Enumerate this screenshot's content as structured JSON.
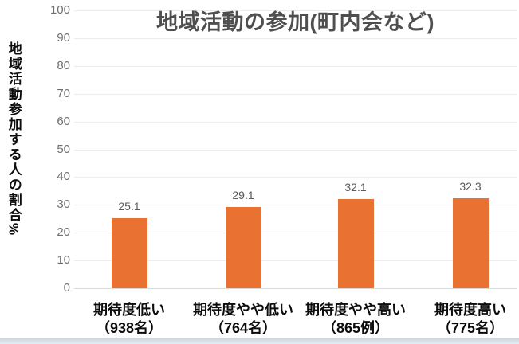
{
  "chart_data": {
    "type": "bar",
    "title": "地域活動の参加(町内会など)",
    "ylabel": "地域活動参加する人の割合%",
    "xlabel": "",
    "categories": [
      {
        "line1": "期待度低い",
        "line2": "（938名）"
      },
      {
        "line1": "期待度やや低い",
        "line2": "（764名）"
      },
      {
        "line1": "期待度やや高い",
        "line2": "（865例）"
      },
      {
        "line1": "期待度高い",
        "line2": "（775名）"
      }
    ],
    "values": [
      25.1,
      29.1,
      32.1,
      32.3
    ],
    "value_labels": [
      "25.1",
      "29.1",
      "32.1",
      "32.3"
    ],
    "ylim": [
      0,
      100
    ],
    "yticks": [
      0,
      10,
      20,
      30,
      40,
      50,
      60,
      70,
      80,
      90,
      100
    ],
    "grid": true,
    "legend_position": "none",
    "bar_color": "#E97132"
  },
  "colors": {
    "bar": "#E97132",
    "title_text": "#4f4f4f",
    "axis_tick_text": "#6f6f6f",
    "value_label_text": "#595959",
    "gridline": "#ececec",
    "baseline": "#d9d9d9",
    "category_text": "#0d0d0d",
    "bottom_strip_top": "#c9d1db",
    "bottom_strip_bottom": "#e7ecf2"
  }
}
